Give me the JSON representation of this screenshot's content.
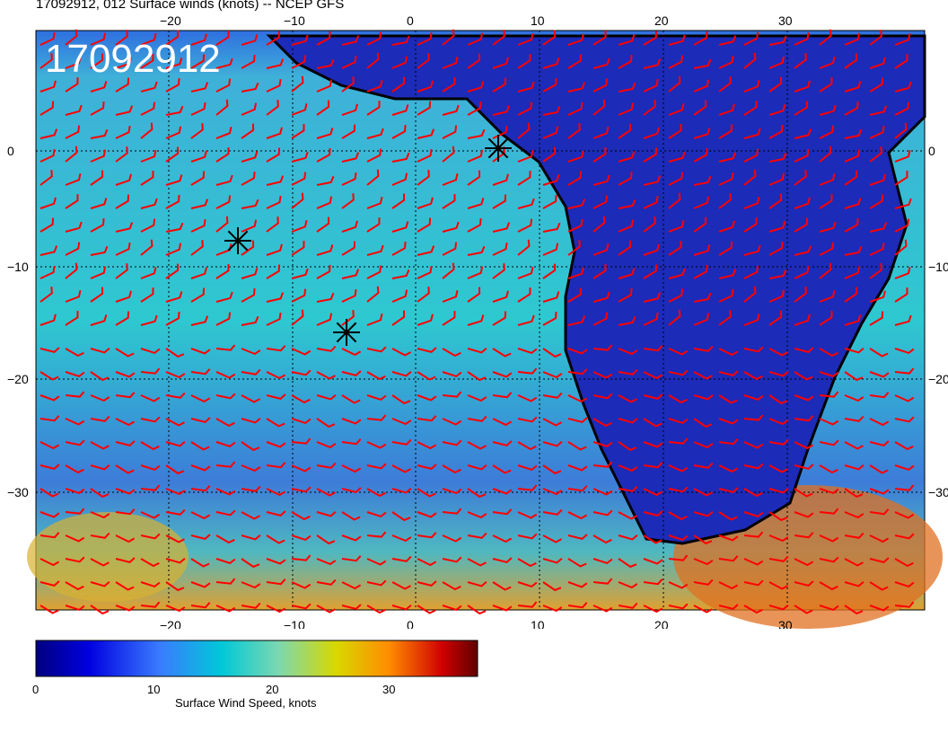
{
  "title": "17092912, 012 Surface winds (knots) -- NCEP GFS",
  "stamp": "17092912",
  "map": {
    "lon_ticks": [
      "−20",
      "−10",
      "0",
      "10",
      "20",
      "30"
    ],
    "lat_ticks": [
      "0",
      "−10",
      "−20",
      "−30"
    ],
    "markers": [
      "asterisk",
      "asterisk",
      "asterisk"
    ],
    "barb_color": "#ff0000",
    "coast_color": "#000000"
  },
  "colorbar": {
    "label": "Surface Wind Speed, knots",
    "ticks": [
      "0",
      "10",
      "20",
      "30"
    ],
    "colors": [
      "#000080",
      "#0000e0",
      "#3a7bff",
      "#00c8d8",
      "#7cd8b0",
      "#d8d800",
      "#ff8c00",
      "#d00000",
      "#600000"
    ]
  }
}
